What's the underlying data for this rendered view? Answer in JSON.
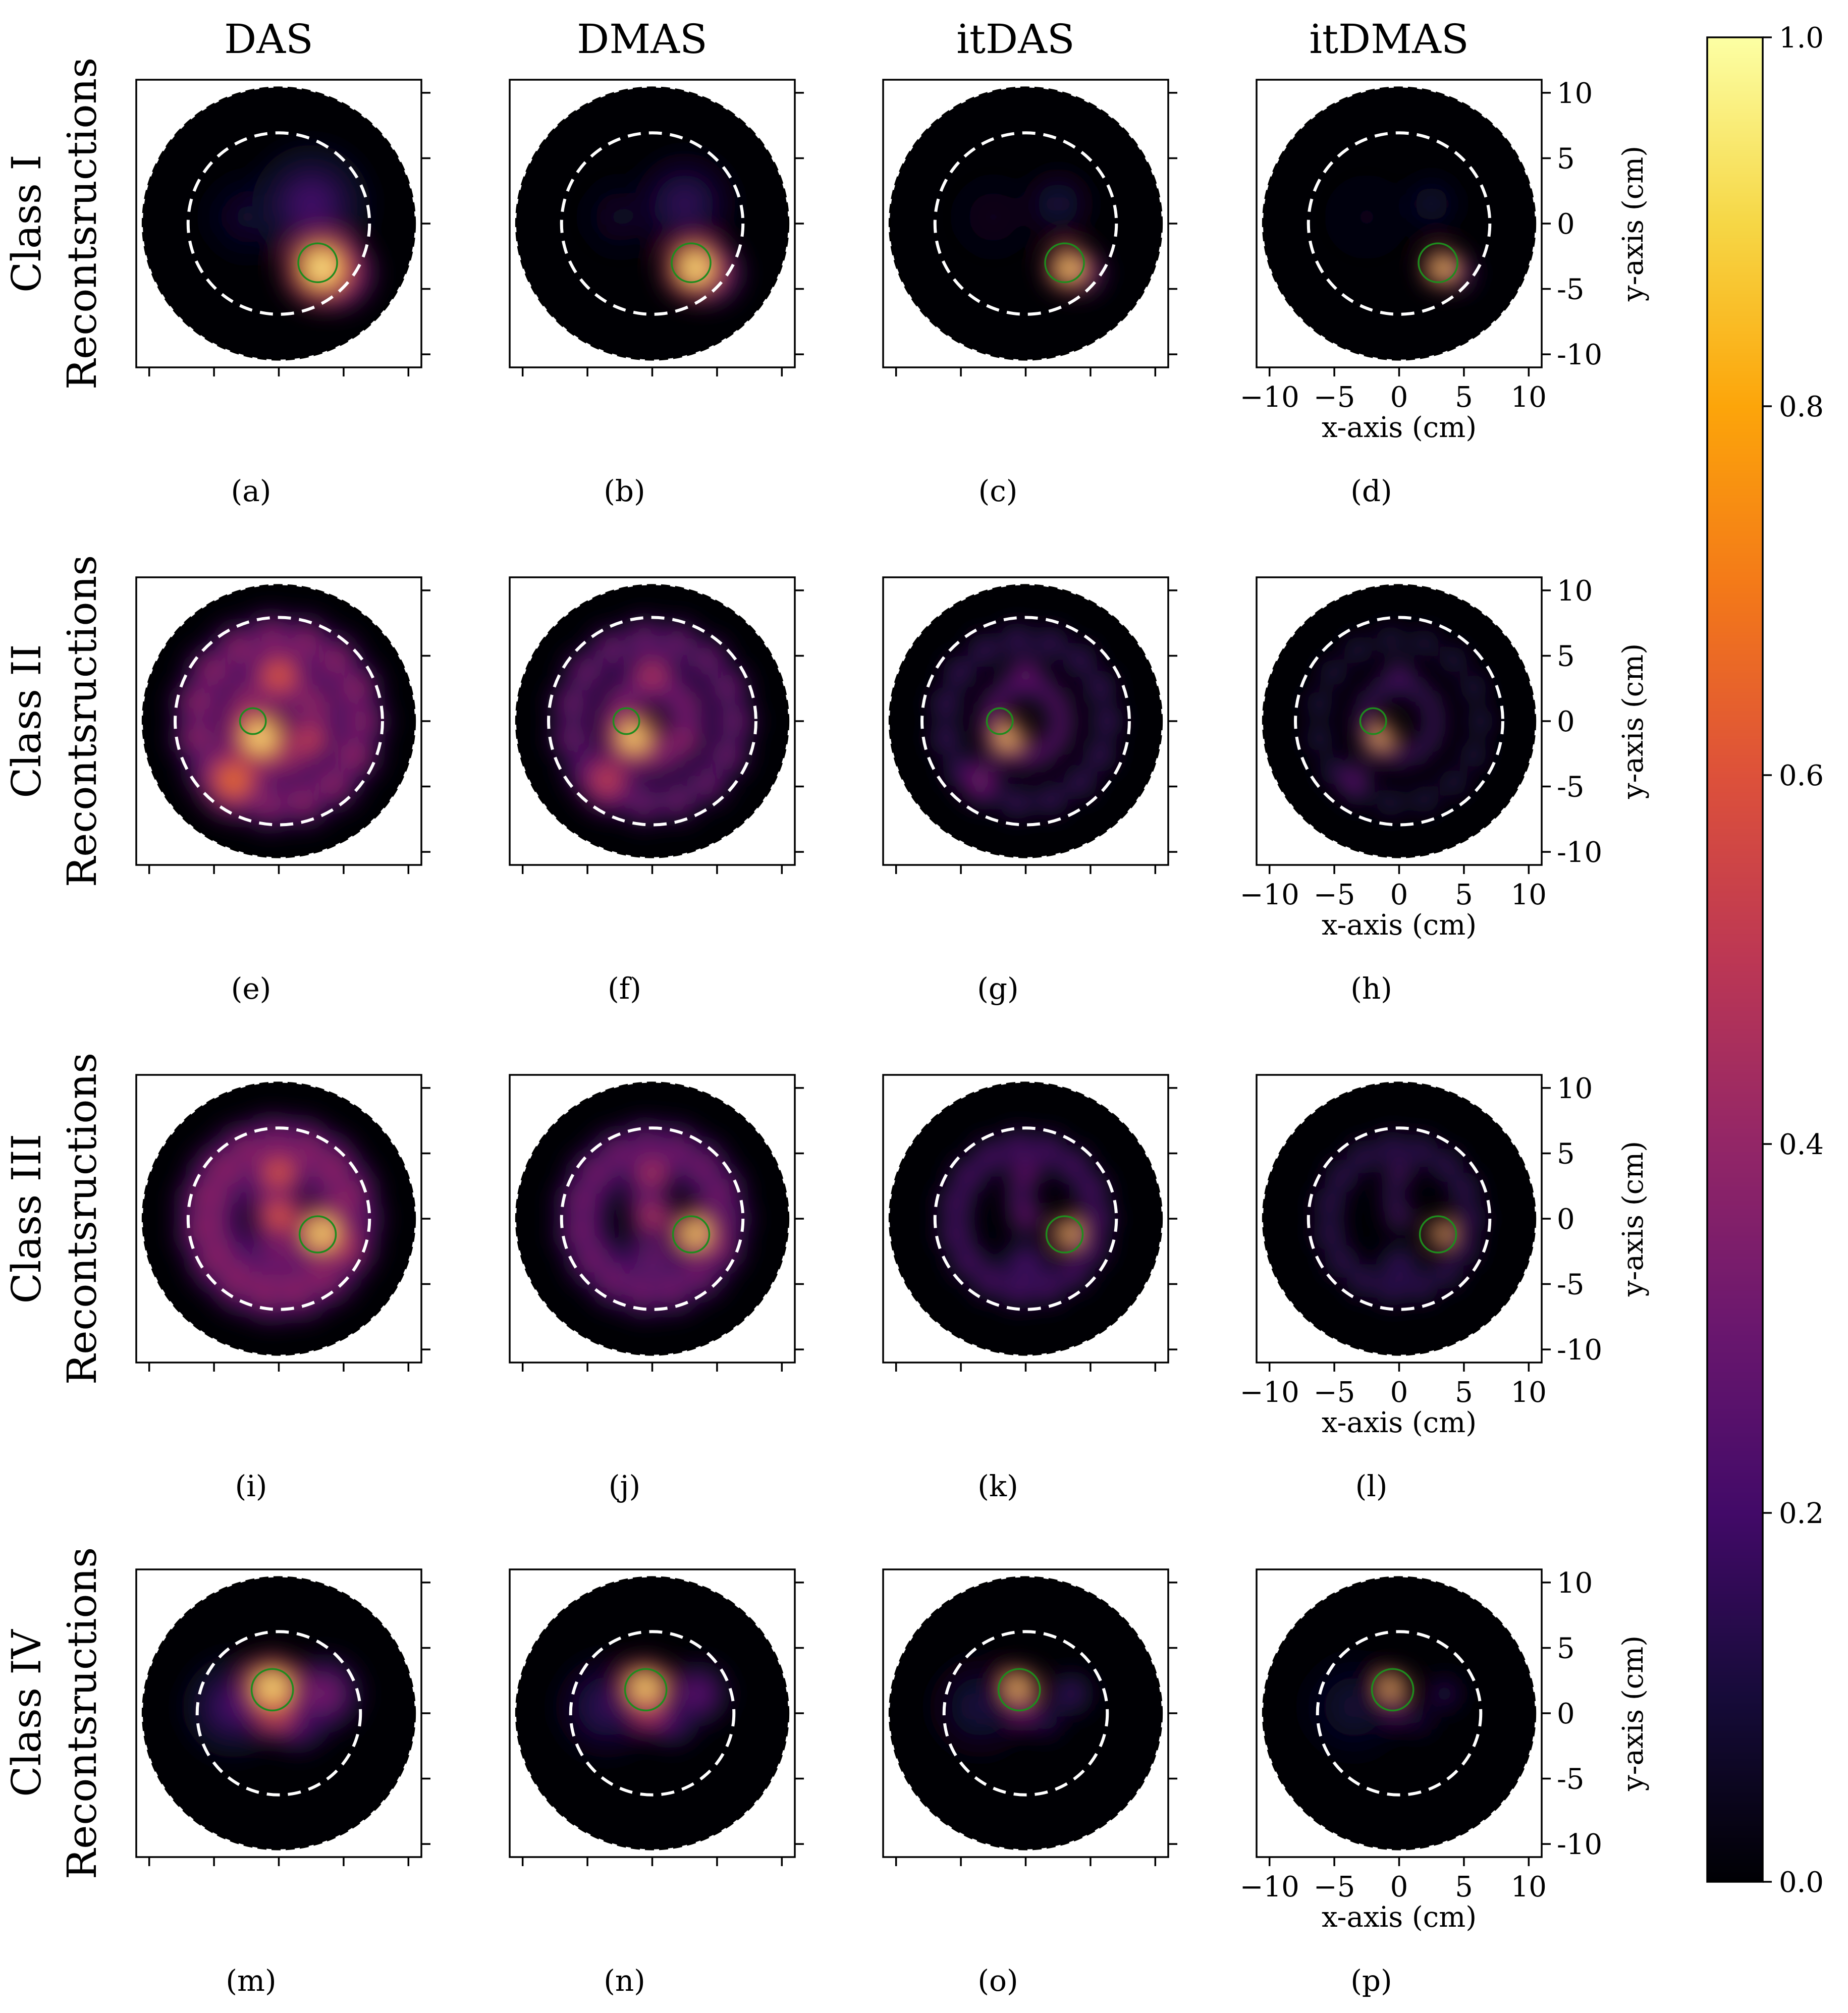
{
  "chart_data": {
    "type": "heatmap",
    "title": "",
    "column_titles": [
      "DAS",
      "DMAS",
      "itDAS",
      "itDMAS"
    ],
    "row_titles": [
      [
        "Class I",
        "Recontsructions"
      ],
      [
        "Class II",
        "Recontsructions"
      ],
      [
        "Class III",
        "Recontsructions"
      ],
      [
        "Class IV",
        "Recontsructions"
      ]
    ],
    "panel_labels": [
      [
        "(a)",
        "(b)",
        "(c)",
        "(d)"
      ],
      [
        "(e)",
        "(f)",
        "(g)",
        "(h)"
      ],
      [
        "(i)",
        "(j)",
        "(k)",
        "(l)"
      ],
      [
        "(m)",
        "(n)",
        "(o)",
        "(p)"
      ]
    ],
    "xlabel": "x-axis (cm)",
    "ylabel": "y-axis (cm)",
    "xlim": [
      -11,
      11
    ],
    "ylim": [
      -11,
      11
    ],
    "xticks": [
      -10,
      -5,
      0,
      5,
      10
    ],
    "yticks": [
      -10,
      -5,
      0,
      5,
      10
    ],
    "x_tick_labels": [
      "−10",
      "−5",
      "0",
      "5",
      "10"
    ],
    "y_tick_labels": [
      "10",
      "5",
      "0",
      "-5",
      "-10"
    ],
    "colormap": "inferno",
    "colorbar": {
      "min": 0.0,
      "max": 1.0,
      "ticks": [
        0.0,
        0.2,
        0.4,
        0.6,
        0.8,
        1.0
      ],
      "tick_labels": [
        "0.0",
        "0.2",
        "0.4",
        "0.6",
        "0.8",
        "1.0"
      ]
    },
    "imaging_region_radius_cm": 10.5,
    "rows": [
      {
        "class": "Class I",
        "dashed_circle": {
          "cx": 0,
          "cy": 0,
          "r": 7
        },
        "target": {
          "cx": 3,
          "cy": -3,
          "r": 1.5
        },
        "peak_value": 1.0
      },
      {
        "class": "Class II",
        "dashed_circle": {
          "cx": 0,
          "cy": 0,
          "r": 8
        },
        "target": {
          "cx": -2,
          "cy": 0,
          "r": 1.0
        },
        "peak_value": 1.0
      },
      {
        "class": "Class III",
        "dashed_circle": {
          "cx": 0,
          "cy": 0,
          "r": 7
        },
        "target": {
          "cx": 3,
          "cy": -1.2,
          "r": 1.4
        },
        "peak_value": 1.0
      },
      {
        "class": "Class IV",
        "dashed_circle": {
          "cx": 0,
          "cy": 0,
          "r": 6.3
        },
        "target": {
          "cx": -0.5,
          "cy": 1.8,
          "r": 1.6
        },
        "peak_value": 1.0
      }
    ]
  }
}
